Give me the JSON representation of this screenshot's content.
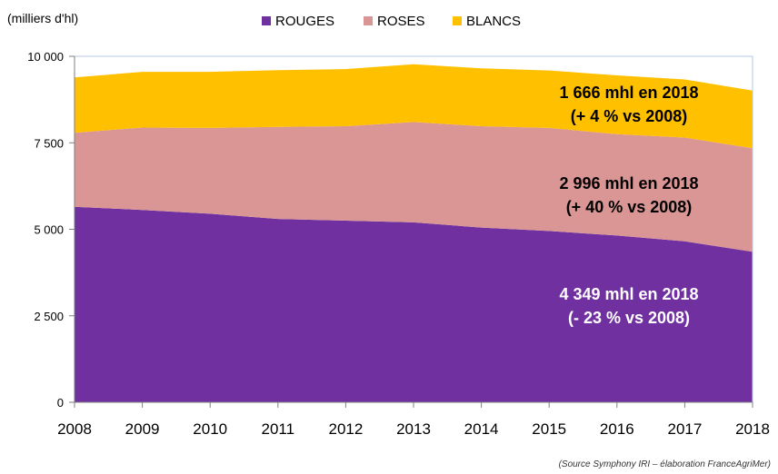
{
  "chart_data": {
    "type": "area",
    "stacked": true,
    "unit_label": "(milliers d'hl)",
    "x": [
      2008,
      2009,
      2010,
      2011,
      2012,
      2013,
      2014,
      2015,
      2016,
      2017,
      2018
    ],
    "x_tick_labels": [
      "2008",
      "2009",
      "2010",
      "2011",
      "2012",
      "2013",
      "2014",
      "2015",
      "2016",
      "2017",
      "2018"
    ],
    "y_tick_labels": [
      "0",
      "2 500",
      "5 000",
      "7 500",
      "10 000"
    ],
    "y_ticks": [
      0,
      2500,
      5000,
      7500,
      10000
    ],
    "ylim": [
      0,
      10000
    ],
    "grid": false,
    "legend_position": "top",
    "series": [
      {
        "name": "ROUGES",
        "color": "#7030A0",
        "values": [
          5650,
          5560,
          5450,
          5300,
          5250,
          5200,
          5050,
          4950,
          4820,
          4650,
          4349
        ]
      },
      {
        "name": "ROSES",
        "color": "#D99694",
        "values": [
          2140,
          2380,
          2480,
          2660,
          2730,
          2900,
          2930,
          2980,
          2930,
          3000,
          2996
        ]
      },
      {
        "name": "BLANCS",
        "color": "#FFC000",
        "values": [
          1600,
          1610,
          1620,
          1640,
          1650,
          1670,
          1670,
          1660,
          1700,
          1680,
          1666
        ]
      }
    ],
    "annotations": [
      {
        "line1": "1 666 mhl en 2018",
        "line2": "(+ 4 % vs 2008)",
        "color": "#000000"
      },
      {
        "line1": "2 996 mhl en 2018",
        "line2": "(+ 40 % vs 2008)",
        "color": "#000000"
      },
      {
        "line1": "4 349 mhl en 2018",
        "line2": "(- 23 % vs 2008)",
        "color": "#ffffff"
      }
    ],
    "source": "(Source Symphony IRI – élaboration FranceAgriMer)"
  }
}
